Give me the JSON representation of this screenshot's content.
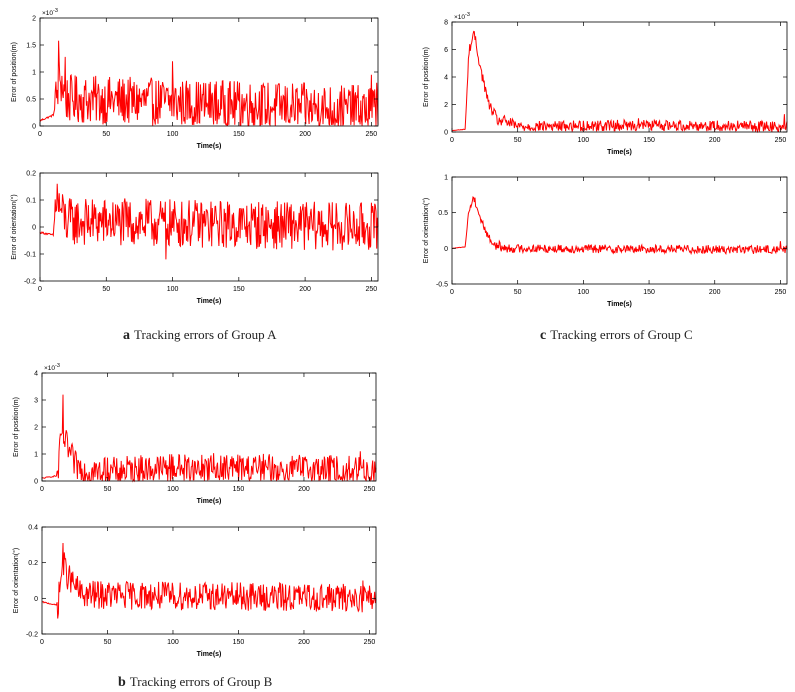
{
  "captions": {
    "a": {
      "letter": "a",
      "text": "Tracking errors of Group A"
    },
    "b": {
      "letter": "b",
      "text": "Tracking errors of Group B"
    },
    "c": {
      "letter": "c",
      "text": "Tracking errors of Group C"
    }
  },
  "colors": {
    "series": "#ff0000",
    "axis": "#000000"
  },
  "chart_data": [
    {
      "id": "a-position",
      "type": "line",
      "xlabel": "Time(s)",
      "ylabel": "Error of position(m)",
      "exponent_label": "×10",
      "exponent_power": "-3",
      "scale": 0.001,
      "xlim": [
        0,
        255
      ],
      "ylim": [
        0,
        0.002
      ],
      "xticks": [
        0,
        50,
        100,
        150,
        200,
        250
      ],
      "xtick_labels": [
        "0",
        "50",
        "100",
        "150",
        "200",
        "250"
      ],
      "yticks": [
        0,
        0.0005,
        0.001,
        0.0015,
        0.002
      ],
      "ytick_labels": [
        "0",
        "0.5",
        "1",
        "1.5",
        "2"
      ],
      "grid": false,
      "series": [
        {
          "profile": {
            "t": [
              0,
              10,
              15,
              20,
              255
            ],
            "v": [
              0.0001,
              0.0002,
              0.0009,
              0.0005,
              0.0003
            ]
          },
          "noise": 0.00045,
          "min": 0,
          "peaks": [
            [
              14,
              0.00158
            ],
            [
              19,
              0.00128
            ],
            [
              100,
              0.0012
            ],
            [
              250,
              0.00095
            ],
            [
              254,
              0.0008
            ]
          ]
        }
      ]
    },
    {
      "id": "a-orientation",
      "type": "line",
      "xlabel": "Time(s)",
      "ylabel": "Error of orientation(°)",
      "xlim": [
        0,
        255
      ],
      "ylim": [
        -0.2,
        0.2
      ],
      "xticks": [
        0,
        50,
        100,
        150,
        200,
        250
      ],
      "xtick_labels": [
        "0",
        "50",
        "100",
        "150",
        "200",
        "250"
      ],
      "yticks": [
        -0.2,
        -0.1,
        0,
        0.1,
        0.2
      ],
      "ytick_labels": [
        "-0.2",
        "-0.1",
        "0",
        "0.1",
        "0.2"
      ],
      "grid": false,
      "series": [
        {
          "profile": {
            "t": [
              0,
              10,
              12,
              20,
              255
            ],
            "v": [
              -0.02,
              -0.03,
              0.1,
              0.02,
              0.0
            ]
          },
          "noise": 0.09,
          "peaks": [
            [
              13,
              0.16
            ],
            [
              95,
              -0.12
            ],
            [
              250,
              0.09
            ],
            [
              254,
              -0.08
            ]
          ]
        }
      ]
    },
    {
      "id": "b-position",
      "type": "line",
      "xlabel": "Time(s)",
      "ylabel": "Error of position(m)",
      "exponent_label": "×10",
      "exponent_power": "-3",
      "scale": 0.001,
      "xlim": [
        0,
        255
      ],
      "ylim": [
        0,
        0.004
      ],
      "xticks": [
        0,
        50,
        100,
        150,
        200,
        250
      ],
      "xtick_labels": [
        "0",
        "50",
        "100",
        "150",
        "200",
        "250"
      ],
      "yticks": [
        0,
        0.001,
        0.002,
        0.003,
        0.004
      ],
      "ytick_labels": [
        "0",
        "1",
        "2",
        "3",
        "4"
      ],
      "grid": false,
      "series": [
        {
          "profile": {
            "t": [
              0,
              12,
              15,
              18,
              25,
              35,
              100,
              255
            ],
            "v": [
              0.0001,
              0.0002,
              0.0018,
              0.0014,
              0.0006,
              0.0003,
              0.0005,
              0.0004
            ]
          },
          "noise": 0.00055,
          "min": 0,
          "peaks": [
            [
              16,
              0.0032
            ],
            [
              100,
              0.0009
            ],
            [
              243,
              0.0011
            ]
          ]
        }
      ]
    },
    {
      "id": "b-orientation",
      "type": "line",
      "xlabel": "Time(s)",
      "ylabel": "Error of orientation(°)",
      "xlim": [
        0,
        255
      ],
      "ylim": [
        -0.2,
        0.4
      ],
      "xticks": [
        0,
        50,
        100,
        150,
        200,
        250
      ],
      "xtick_labels": [
        "0",
        "50",
        "100",
        "150",
        "200",
        "250"
      ],
      "yticks": [
        -0.2,
        0,
        0.2,
        0.4
      ],
      "ytick_labels": [
        "-0.2",
        "0",
        "0.2",
        "0.4"
      ],
      "grid": false,
      "series": [
        {
          "profile": {
            "t": [
              0,
              12,
              16,
              20,
              30,
              255
            ],
            "v": [
              -0.02,
              -0.04,
              0.2,
              0.12,
              0.02,
              0.0
            ]
          },
          "noise": 0.08,
          "peaks": [
            [
              16,
              0.31
            ],
            [
              245,
              0.1
            ],
            [
              252,
              -0.06
            ]
          ]
        }
      ]
    },
    {
      "id": "c-position",
      "type": "line",
      "xlabel": "Time(s)",
      "ylabel": "Error of position(m)",
      "exponent_label": "×10",
      "exponent_power": "-3",
      "scale": 0.001,
      "xlim": [
        0,
        255
      ],
      "ylim": [
        0,
        0.008
      ],
      "xticks": [
        0,
        50,
        100,
        150,
        200,
        250
      ],
      "xtick_labels": [
        "0",
        "50",
        "100",
        "150",
        "200",
        "250"
      ],
      "yticks": [
        0,
        0.002,
        0.004,
        0.006,
        0.008
      ],
      "ytick_labels": [
        "0",
        "2",
        "4",
        "6",
        "8"
      ],
      "grid": false,
      "series": [
        {
          "profile": {
            "t": [
              0,
              10,
              13,
              17,
              22,
              28,
              35,
              40,
              50,
              140,
              150,
              255
            ],
            "v": [
              0.0001,
              0.0002,
              0.006,
              0.0071,
              0.0045,
              0.002,
              0.0008,
              0.0008,
              0.0004,
              0.0005,
              0.0005,
              0.0004
            ]
          },
          "noise": 0.0004,
          "min": 0,
          "peaks": [
            [
              17,
              0.0073
            ],
            [
              142,
              0.001
            ],
            [
              253,
              0.0013
            ]
          ]
        }
      ]
    },
    {
      "id": "c-orientation",
      "type": "line",
      "xlabel": "Time(s)",
      "ylabel": "Error of orientation(°)",
      "xlim": [
        0,
        255
      ],
      "ylim": [
        -0.5,
        1
      ],
      "xticks": [
        0,
        50,
        100,
        150,
        200,
        250
      ],
      "xtick_labels": [
        "0",
        "50",
        "100",
        "150",
        "200",
        "250"
      ],
      "yticks": [
        -0.5,
        0,
        0.5,
        1
      ],
      "ytick_labels": [
        "-0.5",
        "0",
        "0.5",
        "1"
      ],
      "grid": false,
      "series": [
        {
          "profile": {
            "t": [
              0,
              10,
              13,
              17,
              22,
              28,
              32,
              40,
              255
            ],
            "v": [
              0.0,
              0.02,
              0.55,
              0.7,
              0.4,
              0.15,
              0.05,
              0.0,
              -0.02
            ]
          },
          "noise": 0.06,
          "peaks": [
            [
              16,
              0.72
            ],
            [
              36,
              0.1
            ],
            [
              250,
              0.1
            ]
          ]
        }
      ]
    }
  ]
}
